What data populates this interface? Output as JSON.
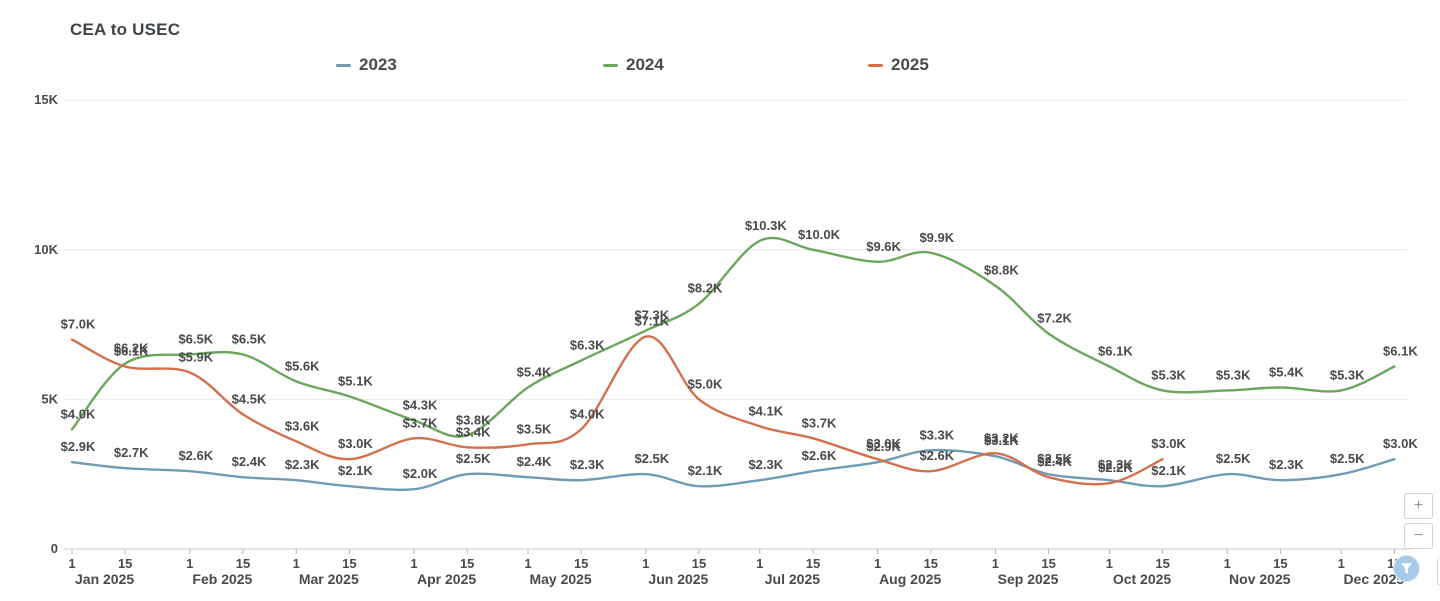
{
  "title": "CEA to USEC",
  "legend": [
    {
      "label": "2023",
      "color": "#6f9cb3"
    },
    {
      "label": "2024",
      "color": "#6ba75a"
    },
    {
      "label": "2025",
      "color": "#d4704e"
    }
  ],
  "controls": {
    "zoom_in": "+",
    "zoom_out": "−"
  },
  "x_axis": {
    "day_tick_labels": [
      "1",
      "15"
    ],
    "months": [
      "Jan 2025",
      "Feb 2025",
      "Mar 2025",
      "Apr 2025",
      "May 2025",
      "Jun 2025",
      "Jul 2025",
      "Aug 2025",
      "Sep 2025",
      "Oct 2025",
      "Nov 2025",
      "Dec 2025"
    ]
  },
  "y_axis": {
    "tick_labels": [
      "0",
      "5K",
      "10K",
      "15K"
    ]
  },
  "chart_data": {
    "type": "line",
    "title": "CEA to USEC",
    "x": [
      "Jan 1",
      "Jan 15",
      "Feb 1",
      "Feb 15",
      "Mar 1",
      "Mar 15",
      "Apr 1",
      "Apr 15",
      "May 1",
      "May 15",
      "Jun 1",
      "Jun 15",
      "Jul 1",
      "Jul 15",
      "Aug 1",
      "Aug 15",
      "Sep 1",
      "Sep 15",
      "Oct 1",
      "Oct 15",
      "Nov 1",
      "Nov 15",
      "Dec 1",
      "Dec 15"
    ],
    "ylim": [
      0,
      15000
    ],
    "yticks": [
      0,
      5000,
      10000,
      15000
    ],
    "ytick_labels": [
      "0",
      "5K",
      "10K",
      "15K"
    ],
    "grid": "horizontal",
    "legend_position": "top",
    "value_format": "$#.#K",
    "series": [
      {
        "name": "2023",
        "color": "#6f9cb3",
        "values_k": [
          2.9,
          2.7,
          2.6,
          2.4,
          2.3,
          2.1,
          2.0,
          2.5,
          2.4,
          2.3,
          2.5,
          2.1,
          2.3,
          2.6,
          2.9,
          3.3,
          3.1,
          2.5,
          2.3,
          2.1,
          2.5,
          2.3,
          2.5,
          3.0
        ],
        "labels": [
          "$2.9K",
          "$2.7K",
          "$2.6K",
          "$2.4K",
          "$2.3K",
          "$2.1K",
          "$2.0K",
          "$2.5K",
          "$2.4K",
          "$2.3K",
          "$2.5K",
          "$2.1K",
          "$2.3K",
          "$2.6K",
          "$2.9K",
          "$3.3K",
          "$3.1K",
          "$2.5K",
          "$2.3K",
          "$2.1K",
          "$2.5K",
          "$2.3K",
          "$2.5K",
          "$3.0K"
        ]
      },
      {
        "name": "2024",
        "color": "#6ba75a",
        "values_k": [
          4.0,
          6.2,
          6.5,
          6.5,
          5.6,
          5.1,
          4.3,
          3.8,
          5.4,
          6.3,
          7.3,
          8.2,
          10.3,
          10.0,
          9.6,
          9.9,
          8.8,
          7.2,
          6.1,
          5.3,
          5.3,
          5.4,
          5.3,
          6.1
        ],
        "labels": [
          "$4.0K",
          "$6.2K",
          "$6.5K",
          "$6.5K",
          "$5.6K",
          "$5.1K",
          "$4.3K",
          "$3.8K",
          "$5.4K",
          "$6.3K",
          "$7.3K",
          "$8.2K",
          "$10.3K",
          "$10.0K",
          "$9.6K",
          "$9.9K",
          "$8.8K",
          "$7.2K",
          "$6.1K",
          "$5.3K",
          "$5.3K",
          "$5.4K",
          "$5.3K",
          "$6.1K"
        ]
      },
      {
        "name": "2025",
        "color": "#d4704e",
        "values_k": [
          7.0,
          6.1,
          5.9,
          4.5,
          3.6,
          3.0,
          3.7,
          3.4,
          3.5,
          4.0,
          7.1,
          5.0,
          4.1,
          3.7,
          3.0,
          2.6,
          3.2,
          2.4,
          2.2,
          3.0
        ],
        "labels": [
          "$7.0K",
          "$6.1K",
          "$5.9K",
          "$4.5K",
          "$3.6K",
          "$3.0K",
          "$3.7K",
          "$3.4K",
          "$3.5K",
          "$4.0K",
          "$7.1K",
          "$5.0K",
          "$4.1K",
          "$3.7K",
          "$3.0K",
          "$2.6K",
          "$3.2K",
          "$2.4K",
          "$2.2K",
          "$3.0K"
        ]
      }
    ]
  }
}
